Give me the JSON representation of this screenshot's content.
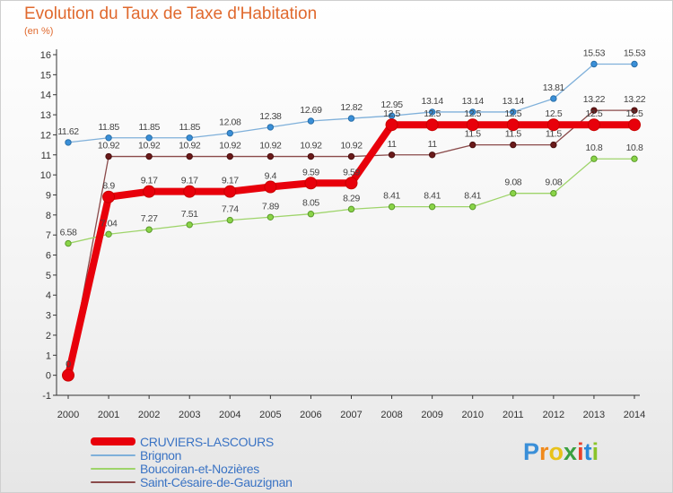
{
  "chart_data": {
    "type": "line",
    "title": "Evolution du Taux de Taxe d'Habitation",
    "ylabel": "(en %)",
    "xlabel": "",
    "x": [
      "2000",
      "2001",
      "2002",
      "2003",
      "2004",
      "2005",
      "2006",
      "2007",
      "2008",
      "2009",
      "2010",
      "2011",
      "2012",
      "2013",
      "2014"
    ],
    "ylim": [
      -1,
      16
    ],
    "yticks": [
      "-1",
      "0",
      "1",
      "2",
      "3",
      "4",
      "5",
      "6",
      "7",
      "8",
      "9",
      "10",
      "11",
      "12",
      "13",
      "14",
      "15",
      "16"
    ],
    "grid": false,
    "legend_position": "bottom-left",
    "series": [
      {
        "name": "CRUVIERS-LASCOURS",
        "color": "#e8000b",
        "values": [
          0,
          8.9,
          9.17,
          9.17,
          9.17,
          9.4,
          9.59,
          9.59,
          12.5,
          12.5,
          12.5,
          12.5,
          12.5,
          12.5,
          12.5
        ],
        "labels": [
          "0",
          "8.9",
          "9.17",
          "9.17",
          "9.17",
          "9.4",
          "9.59",
          "9.59",
          "12.5",
          "12.5",
          "12.5",
          "12.5",
          "12.5",
          "12.5",
          "12.5"
        ]
      },
      {
        "name": "Brignon",
        "color": "#7fb0da",
        "values": [
          11.62,
          11.85,
          11.85,
          11.85,
          12.08,
          12.38,
          12.69,
          12.82,
          12.95,
          13.14,
          13.14,
          13.14,
          13.81,
          15.53,
          15.53
        ],
        "labels": [
          "11.62",
          "11.85",
          "11.85",
          "11.85",
          "12.08",
          "12.38",
          "12.69",
          "12.82",
          "12.95",
          "13.14",
          "13.14",
          "13.14",
          "13.81",
          "15.53",
          "15.53"
        ]
      },
      {
        "name": "Boucoiran-et-Nozières",
        "color": "#9ed46a",
        "values": [
          6.58,
          7.04,
          7.27,
          7.51,
          7.74,
          7.89,
          8.05,
          8.29,
          8.41,
          8.41,
          8.41,
          9.08,
          9.08,
          10.8,
          10.8
        ],
        "labels": [
          "6.58",
          "7.04",
          "7.27",
          "7.51",
          "7.74",
          "7.89",
          "8.05",
          "8.29",
          "8.41",
          "8.41",
          "8.41",
          "9.08",
          "9.08",
          "10.8",
          "10.8"
        ]
      },
      {
        "name": "Saint-Césaire-de-Gauzignan",
        "color": "#8a4a4a",
        "values": [
          0,
          10.92,
          10.92,
          10.92,
          10.92,
          10.92,
          10.92,
          10.92,
          11,
          11,
          11.5,
          11.5,
          11.5,
          13.22,
          13.22
        ],
        "labels": [
          "0",
          "10.92",
          "10.92",
          "10.92",
          "10.92",
          "10.92",
          "10.92",
          "10.92",
          "11",
          "11",
          "11.5",
          "11.5",
          "11.5",
          "13.22",
          "13.22"
        ]
      }
    ]
  },
  "logo": {
    "letters": [
      "P",
      "r",
      "o",
      "x",
      "i",
      "t",
      "i"
    ],
    "colors": [
      "#3a8fd8",
      "#f08a1c",
      "#e8c21a",
      "#3aa040",
      "#e8412a",
      "#2a8ad8",
      "#8ac42a"
    ]
  }
}
